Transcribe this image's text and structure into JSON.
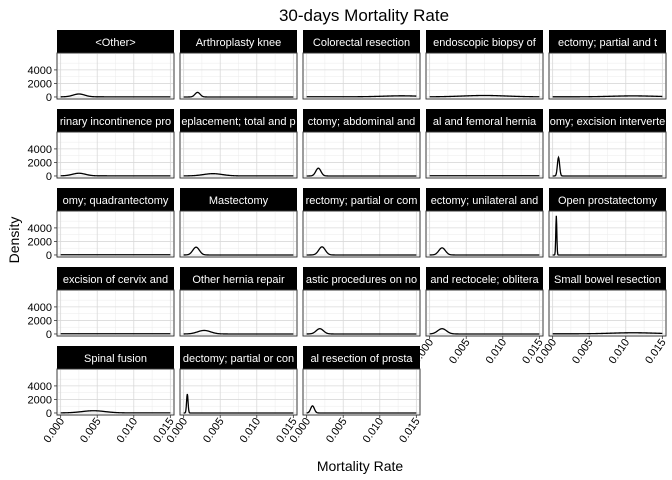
{
  "chart_data": {
    "type": "line",
    "title": "30-days Mortality Rate",
    "xlabel": "Mortality Rate",
    "ylabel": "Density",
    "xlim": [
      -0.0005,
      0.0155
    ],
    "ylim": [
      -300,
      6500
    ],
    "x_ticks": [
      0.0,
      0.005,
      0.01,
      0.015
    ],
    "x_tick_labels": [
      "0.000",
      "0.005",
      "0.010",
      "0.015"
    ],
    "y_ticks": [
      0,
      2000,
      4000
    ],
    "y_tick_labels": [
      "0",
      "2000",
      "4000"
    ],
    "grid": true,
    "legend": "none",
    "layout": {
      "rows": 5,
      "cols": 5
    },
    "panels": [
      {
        "label": "<Other>",
        "peaks": [
          {
            "mu": 0.0025,
            "sigma": 0.0008,
            "height": 420
          }
        ],
        "base": 20
      },
      {
        "label": "Arthroplasty knee",
        "peaks": [
          {
            "mu": 0.0019,
            "sigma": 0.00035,
            "height": 680
          }
        ],
        "base": 0
      },
      {
        "label": "Colorectal resection",
        "peaks": [
          {
            "mu": 0.013,
            "sigma": 0.0025,
            "height": 140
          }
        ],
        "base": 30
      },
      {
        "label": "endoscopic biopsy of",
        "peaks": [
          {
            "mu": 0.0075,
            "sigma": 0.003,
            "height": 200
          }
        ],
        "base": 20
      },
      {
        "label": "ectomy; partial and t",
        "peaks": [
          {
            "mu": 0.011,
            "sigma": 0.003,
            "height": 140
          }
        ],
        "base": 20
      },
      {
        "label": "rinary incontinence pro",
        "peaks": [
          {
            "mu": 0.0025,
            "sigma": 0.0009,
            "height": 380
          }
        ],
        "base": 20
      },
      {
        "label": "eplacement; total and p",
        "peaks": [
          {
            "mu": 0.004,
            "sigma": 0.0013,
            "height": 330
          }
        ],
        "base": 10
      },
      {
        "label": "ctomy; abdominal and",
        "peaks": [
          {
            "mu": 0.0016,
            "sigma": 0.00035,
            "height": 1150
          }
        ],
        "base": 0
      },
      {
        "label": "al and femoral hernia",
        "peaks": [],
        "base": 30
      },
      {
        "label": "omy; excision interverte",
        "peaks": [
          {
            "mu": 0.0008,
            "sigma": 0.00015,
            "height": 2750
          }
        ],
        "base": 0
      },
      {
        "label": "omy; quadrantectomy",
        "peaks": [],
        "base": 30
      },
      {
        "label": "Mastectomy",
        "peaks": [
          {
            "mu": 0.0017,
            "sigma": 0.00045,
            "height": 1150
          }
        ],
        "base": 0
      },
      {
        "label": "rectomy; partial or com",
        "peaks": [
          {
            "mu": 0.0021,
            "sigma": 0.00045,
            "height": 1200
          }
        ],
        "base": 0
      },
      {
        "label": "ectomy; unilateral and",
        "peaks": [
          {
            "mu": 0.0017,
            "sigma": 0.00045,
            "height": 1050
          }
        ],
        "base": 0
      },
      {
        "label": "Open prostatectomy",
        "peaks": [
          {
            "mu": 0.0005,
            "sigma": 7e-05,
            "height": 5800
          }
        ],
        "base": 0
      },
      {
        "label": "excision of cervix and",
        "peaks": [],
        "base": 30
      },
      {
        "label": "Other hernia repair",
        "peaks": [
          {
            "mu": 0.0028,
            "sigma": 0.0009,
            "height": 520
          }
        ],
        "base": 0
      },
      {
        "label": "astic procedures on no",
        "peaks": [
          {
            "mu": 0.0018,
            "sigma": 0.0005,
            "height": 780
          }
        ],
        "base": 0
      },
      {
        "label": "and rectocele; oblitera",
        "peaks": [
          {
            "mu": 0.0017,
            "sigma": 0.0006,
            "height": 780
          }
        ],
        "base": 0
      },
      {
        "label": "Small bowel resection",
        "peaks": [
          {
            "mu": 0.011,
            "sigma": 0.003,
            "height": 160
          }
        ],
        "base": 20
      },
      {
        "label": "Spinal fusion",
        "peaks": [
          {
            "mu": 0.0045,
            "sigma": 0.0016,
            "height": 320
          }
        ],
        "base": 10
      },
      {
        "label": "dectomy; partial or con",
        "peaks": [
          {
            "mu": 0.0005,
            "sigma": 0.0001,
            "height": 2800
          }
        ],
        "base": 0
      },
      {
        "label": "al resection of prosta",
        "peaks": [
          {
            "mu": 0.0008,
            "sigma": 0.00025,
            "height": 1050
          }
        ],
        "base": 0
      }
    ]
  }
}
